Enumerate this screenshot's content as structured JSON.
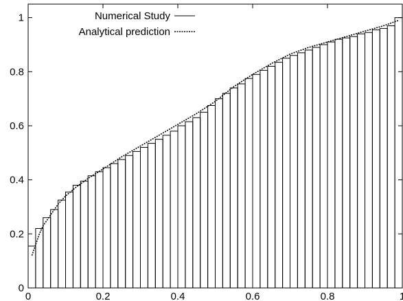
{
  "chart_data": {
    "type": "bar",
    "title": "",
    "xlabel": "",
    "ylabel": "",
    "xlim": [
      0,
      1
    ],
    "ylim": [
      0,
      1.05
    ],
    "x_ticks": [
      0,
      0.2,
      0.4,
      0.6,
      0.8,
      1
    ],
    "x_tick_labels": [
      "0",
      "0.2",
      "0.4",
      "0.6",
      "0.8",
      "1"
    ],
    "y_ticks": [
      0,
      0.2,
      0.4,
      0.6,
      0.8,
      1
    ],
    "y_tick_labels": [
      "0",
      "0.2",
      "0.4",
      "0.6",
      "0.8",
      "1"
    ],
    "grid": false,
    "legend_position": "top-left",
    "bin_width": 0.02,
    "series": [
      {
        "name": "Numerical Study",
        "type": "histogram-step",
        "line_style": "solid",
        "x_start": [
          0.0,
          0.02,
          0.04,
          0.06,
          0.08,
          0.1,
          0.12,
          0.14,
          0.16,
          0.18,
          0.2,
          0.22,
          0.24,
          0.26,
          0.28,
          0.3,
          0.32,
          0.34,
          0.36,
          0.38,
          0.4,
          0.42,
          0.44,
          0.46,
          0.48,
          0.5,
          0.52,
          0.54,
          0.56,
          0.58,
          0.6,
          0.62,
          0.64,
          0.66,
          0.68,
          0.7,
          0.72,
          0.74,
          0.76,
          0.78,
          0.8,
          0.82,
          0.84,
          0.86,
          0.88,
          0.9,
          0.92,
          0.94,
          0.96,
          0.98
        ],
        "values": [
          0.155,
          0.22,
          0.26,
          0.29,
          0.325,
          0.355,
          0.38,
          0.395,
          0.415,
          0.43,
          0.445,
          0.46,
          0.475,
          0.49,
          0.505,
          0.52,
          0.535,
          0.55,
          0.565,
          0.58,
          0.6,
          0.615,
          0.63,
          0.65,
          0.675,
          0.7,
          0.72,
          0.74,
          0.755,
          0.775,
          0.79,
          0.805,
          0.82,
          0.835,
          0.85,
          0.86,
          0.87,
          0.88,
          0.89,
          0.9,
          0.91,
          0.92,
          0.925,
          0.93,
          0.94,
          0.945,
          0.955,
          0.96,
          0.97,
          1.0
        ]
      },
      {
        "name": "Analytical prediction",
        "type": "line",
        "line_style": "dotted",
        "x": [
          0.01,
          0.02,
          0.03,
          0.04,
          0.06,
          0.08,
          0.1,
          0.13,
          0.16,
          0.2,
          0.25,
          0.3,
          0.35,
          0.4,
          0.45,
          0.5,
          0.55,
          0.6,
          0.65,
          0.7,
          0.75,
          0.8,
          0.85,
          0.9,
          0.95,
          0.99
        ],
        "values": [
          0.12,
          0.16,
          0.2,
          0.23,
          0.27,
          0.31,
          0.34,
          0.375,
          0.405,
          0.44,
          0.485,
          0.525,
          0.565,
          0.605,
          0.645,
          0.69,
          0.745,
          0.79,
          0.83,
          0.865,
          0.89,
          0.91,
          0.93,
          0.95,
          0.97,
          0.99
        ]
      }
    ]
  }
}
